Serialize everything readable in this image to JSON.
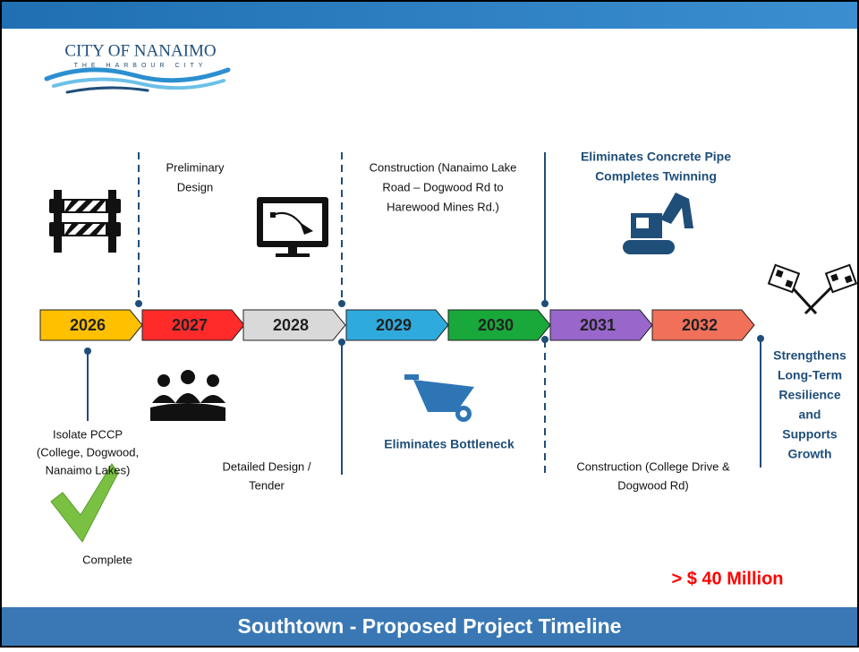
{
  "logo": {
    "name": "CITY OF NANAIMO",
    "tagline": "THE HARBOUR CITY"
  },
  "timeline": [
    {
      "year": "2026",
      "color": "#ffc000"
    },
    {
      "year": "2027",
      "color": "#ff2b2b"
    },
    {
      "year": "2028",
      "color": "#d9d9d9"
    },
    {
      "year": "2029",
      "color": "#2eabdc"
    },
    {
      "year": "2030",
      "color": "#19a83a"
    },
    {
      "year": "2031",
      "color": "#9966cc"
    },
    {
      "year": "2032",
      "color": "#f0705a"
    }
  ],
  "above": [
    {
      "lines": [
        "Preliminary",
        "Design"
      ]
    },
    {
      "lines": [
        "Construction (Nanaimo Lake",
        "Road – Dogwood Rd to",
        "Harewood Mines Rd.)"
      ]
    },
    {
      "lines": [
        "Eliminates Concrete Pipe",
        "Completes Twinning"
      ]
    }
  ],
  "below": [
    {
      "lines": [
        "Isolate PCCP",
        "(College, Dogwood,",
        "Nanaimo Lakes)"
      ]
    },
    {
      "lines": [
        "Detailed Design  /",
        "Tender"
      ]
    },
    {
      "lines": [
        "Eliminates Bottleneck"
      ]
    },
    {
      "lines": [
        "Construction (College Drive &",
        "Dogwood Rd)"
      ]
    }
  ],
  "outcome": {
    "lines": [
      "Strengthens",
      "Long-Term",
      "Resilience",
      "and",
      "Supports",
      "Growth"
    ]
  },
  "status": "Complete",
  "cost": "> $ 40 Million",
  "footer": "Southtown - Proposed Project Timeline"
}
